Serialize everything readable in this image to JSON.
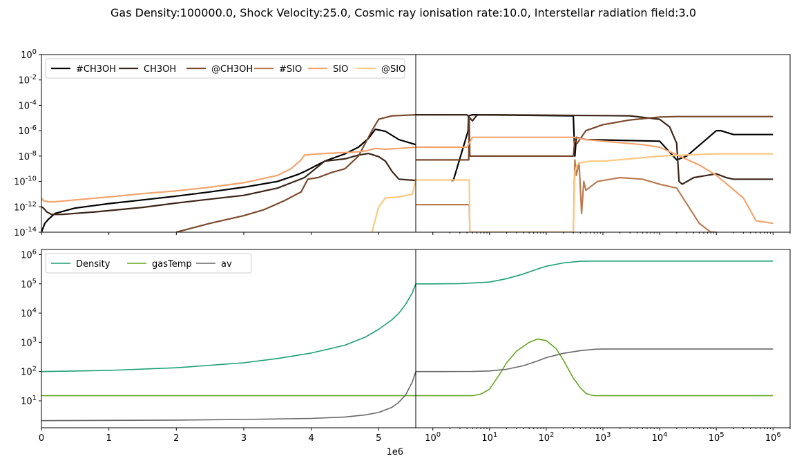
{
  "suptitle": "Gas Density:100000.0, Shock Velocity:25.0, Cosmic ray ionisation rate:10.0, Interstellar radiation field:3.0",
  "offset_label": "1e6",
  "colors": {
    "#CH3OH": "#000000",
    "CH3OH": "#3a2516",
    "@CH3OH": "#7a4a2c",
    "#SIO": "#bb7a4f",
    "SIO": "#f3a36c",
    "@SIO": "#fcc880",
    "Density": "#1b9e77",
    "gasTemp": "#66a61e",
    "av": "#666666"
  },
  "chart_data": [
    {
      "type": "line",
      "panel": "top-left",
      "xscale": "linear",
      "xlim": [
        0,
        5550000.0
      ],
      "yscale": "log",
      "ylim": [
        1e-14,
        1
      ],
      "yticklabels": [
        "10^-14",
        "10^-12",
        "10^-10",
        "10^-8",
        "10^-6",
        "10^-4",
        "10^-2",
        "10^0"
      ],
      "legend": "top-left",
      "series": [
        {
          "name": "#CH3OH",
          "x": [
            0,
            50000.0,
            100000.0,
            200000.0,
            500000.0,
            1000000.0,
            1500000.0,
            2000000.0,
            2500000.0,
            3000000.0,
            3500000.0,
            3800000.0,
            3900000.0,
            4200000.0,
            4500000.0,
            4700000.0,
            4850000.0,
            4950000.0,
            5100000.0,
            5300000.0,
            5550000.0
          ],
          "y": [
            1e-14,
            5e-14,
            1e-13,
            3e-13,
            8e-13,
            1.8e-12,
            3.5e-12,
            7e-12,
            1.5e-11,
            3.5e-11,
            1e-10,
            3.5e-10,
            6e-10,
            4e-09,
            1.5e-08,
            5e-08,
            2.5e-07,
            1.3e-06,
            9e-07,
            2e-07,
            8e-08
          ]
        },
        {
          "name": "CH3OH",
          "x": [
            0,
            30000.0,
            80000.0,
            150000.0,
            300000.0,
            800000.0,
            1500000.0,
            2000000.0,
            2500000.0,
            3000000.0,
            3500000.0,
            3900000.0,
            4200000.0,
            4500000.0,
            4700000.0,
            4850000.0,
            5000000.0,
            5100000.0,
            5200000.0,
            5300000.0,
            5550000.0
          ],
          "y": [
            1e-12,
            8e-13,
            4e-13,
            2.5e-13,
            2.5e-13,
            4e-13,
            9e-13,
            2e-12,
            4e-12,
            8e-12,
            3e-11,
            2e-10,
            4e-09,
            6e-09,
            1.2e-08,
            1.6e-08,
            9e-09,
            4e-09,
            6e-10,
            1.5e-10,
            1.2e-10
          ]
        },
        {
          "name": "@CH3OH",
          "x": [
            2000000.0,
            2500000.0,
            3000000.0,
            3300000.0,
            3600000.0,
            3850000.0,
            3950000.0,
            4100000.0,
            4300000.0,
            4500000.0,
            4700000.0,
            4800000.0,
            4900000.0,
            5000000.0,
            5200000.0,
            5550000.0
          ],
          "y": [
            1e-14,
            5e-14,
            2e-13,
            6e-13,
            3e-12,
            1.5e-11,
            1.5e-10,
            2e-10,
            5e-10,
            1e-09,
            1e-08,
            1e-07,
            1e-06,
            8e-06,
            1.5e-05,
            1.8e-05
          ]
        },
        {
          "name": "#SIO",
          "x": [],
          "y": []
        },
        {
          "name": "SIO",
          "x": [
            0,
            30000.0,
            100000.0,
            200000.0,
            500000.0,
            1000000.0,
            1500000.0,
            2000000.0,
            2500000.0,
            3000000.0,
            3500000.0,
            3700000.0,
            3850000.0,
            3900000.0,
            4100000.0,
            4300000.0,
            4600000.0,
            4800000.0,
            4950000.0,
            5100000.0,
            5300000.0,
            5550000.0
          ],
          "y": [
            5e-12,
            3e-12,
            2.5e-12,
            2.5e-12,
            3.5e-12,
            6e-12,
            1.1e-11,
            1.8e-11,
            3.5e-11,
            8e-11,
            3e-10,
            1e-09,
            5e-09,
            1.2e-08,
            1.5e-08,
            1.7e-08,
            2e-08,
            2.5e-08,
            4e-08,
            3.5e-08,
            4e-08,
            5e-08
          ]
        },
        {
          "name": "@SIO",
          "x": [
            4900000.0,
            5000000.0,
            5100000.0,
            5300000.0,
            5500000.0,
            5550000.0
          ],
          "y": [
            1e-14,
            1e-12,
            5e-12,
            6e-12,
            1e-11,
            1.3e-10
          ]
        }
      ]
    },
    {
      "type": "line",
      "panel": "top-right",
      "xscale": "log",
      "xlim": [
        0.5,
        2000000.0
      ],
      "yscale": "log",
      "ylim": [
        1e-14,
        1
      ],
      "series": [
        {
          "name": "#CH3OH",
          "x": [
            2.1,
            2.3,
            4.2,
            4.3,
            5,
            6,
            300,
            320,
            340,
            500,
            10000.0,
            20000.0,
            30000.0,
            100000.0,
            120000.0,
            200000.0,
            1000000.0
          ],
          "y": [
            1.2e-10,
            1.2e-10,
            1e-06,
            1.5e-05,
            1.8e-05,
            1.8e-05,
            1.5e-05,
            1e-08,
            3e-07,
            2e-07,
            1.5e-07,
            5e-09,
            1e-08,
            1e-06,
            1e-06,
            5e-07,
            5e-07
          ]
        },
        {
          "name": "CH3OH",
          "x": [
            0.5,
            2,
            4,
            5,
            6,
            7,
            10,
            3000.0,
            10000.0,
            15000.0,
            20000.0,
            22000.0,
            25000.0,
            40000.0,
            100000.0,
            150000.0,
            200000.0,
            1000000.0
          ],
          "y": [
            1.8e-05,
            1.8e-05,
            1.8e-05,
            6e-06,
            1.7e-05,
            1.8e-05,
            1.8e-05,
            1.5e-05,
            8e-06,
            2e-06,
            1e-07,
            1e-10,
            6e-11,
            2e-10,
            4e-10,
            2e-10,
            1.5e-10,
            1.5e-10
          ]
        },
        {
          "name": "@CH3OH",
          "x": [
            0.5,
            4.3,
            4.4,
            4.5,
            300,
            320,
            350,
            500,
            1000.0,
            3000.0,
            10000.0,
            20000.0,
            1000000.0
          ],
          "y": [
            5e-09,
            5e-09,
            1e-05,
            1e-08,
            1e-08,
            2e-07,
            1e-07,
            1e-06,
            3e-06,
            7e-06,
            1.2e-05,
            1.3e-05,
            1.3e-05
          ]
        },
        {
          "name": "#SIO",
          "x": [
            0.5,
            4,
            4.4,
            4.5,
            300,
            320,
            340,
            380,
            420,
            460,
            500,
            800,
            2000.0,
            5000.0,
            10000.0,
            20000.0,
            50000.0,
            80000.0,
            100000.0
          ],
          "y": [
            1.5e-12,
            1.5e-12,
            1.5e-12,
            1e-14,
            1e-14,
            5e-09,
            3e-10,
            3e-09,
            3e-13,
            1e-10,
            2e-11,
            1e-10,
            2e-10,
            1.5e-10,
            6e-11,
            3e-11,
            5e-14,
            1e-14,
            1e-14
          ]
        },
        {
          "name": "SIO",
          "x": [
            0.5,
            4,
            5,
            10,
            100,
            300,
            500,
            1000.0,
            5000.0,
            10000.0,
            50000.0,
            100000.0,
            300000.0,
            500000.0,
            1000000.0
          ],
          "y": [
            5e-08,
            5e-08,
            3e-07,
            3e-07,
            3e-07,
            3e-07,
            2e-07,
            1.5e-07,
            8e-08,
            5e-08,
            2e-09,
            3e-10,
            5e-12,
            8e-14,
            5e-14
          ]
        },
        {
          "name": "@SIO",
          "x": [
            0.5,
            4.3,
            4.4,
            4.5,
            300,
            320,
            350,
            400,
            600,
            1000.0,
            3000.0,
            10000.0,
            100000.0,
            1000000.0
          ],
          "y": [
            1.3e-10,
            1.3e-10,
            1e-10,
            1e-14,
            1e-14,
            6e-10,
            2e-09,
            3e-09,
            4e-09,
            4e-09,
            6e-09,
            1e-08,
            1.5e-08,
            1.5e-08
          ]
        }
      ]
    },
    {
      "type": "line",
      "panel": "bottom-left",
      "xscale": "linear",
      "xlim": [
        0,
        5550000.0
      ],
      "xticklabels": [
        "0",
        "1",
        "2",
        "3",
        "4",
        "5"
      ],
      "yscale": "log",
      "ylim": [
        1.2,
        1500000.0
      ],
      "yticklabels": [
        "10^1",
        "10^2",
        "10^3",
        "10^4",
        "10^5",
        "10^6"
      ],
      "legend": "top-left",
      "series": [
        {
          "name": "Density",
          "x": [
            0,
            1000000.0,
            2000000.0,
            3000000.0,
            3500000.0,
            4000000.0,
            4500000.0,
            4800000.0,
            5000000.0,
            5200000.0,
            5300000.0,
            5400000.0,
            5500000.0,
            5550000.0
          ],
          "y": [
            100,
            110,
            135,
            200,
            280,
            430,
            800,
            1500,
            2800,
            6000,
            10000.0,
            20000.0,
            50000.0,
            100000.0
          ]
        },
        {
          "name": "gasTemp",
          "x": [
            0,
            5550000.0
          ],
          "y": [
            15,
            15
          ]
        },
        {
          "name": "av",
          "x": [
            0,
            1000000.0,
            2000000.0,
            3000000.0,
            4000000.0,
            4500000.0,
            4800000.0,
            5000000.0,
            5200000.0,
            5300000.0,
            5400000.0,
            5500000.0,
            5550000.0
          ],
          "y": [
            2.1,
            2.15,
            2.2,
            2.3,
            2.5,
            2.8,
            3.3,
            4,
            6,
            9,
            16,
            45,
            100
          ]
        }
      ]
    },
    {
      "type": "line",
      "panel": "bottom-right",
      "xscale": "log",
      "xlim": [
        0.5,
        2000000.0
      ],
      "xticklabels": [
        "10^0",
        "10^1",
        "10^2",
        "10^3",
        "10^4",
        "10^5",
        "10^6"
      ],
      "yscale": "log",
      "ylim": [
        1.2,
        1500000.0
      ],
      "series": [
        {
          "name": "Density",
          "x": [
            0.5,
            1,
            3,
            10,
            20,
            40,
            70,
            100,
            200,
            400,
            700,
            1000.0,
            10000.0,
            1000000.0
          ],
          "y": [
            100000.0,
            100000.0,
            102000.0,
            115000.0,
            150000.0,
            220000.0,
            320000.0,
            400000.0,
            520000.0,
            590000.0,
            600000.0,
            600000.0,
            600000.0,
            600000.0
          ]
        },
        {
          "name": "gasTemp",
          "x": [
            0.5,
            5,
            7,
            10,
            15,
            20,
            30,
            50,
            70,
            100,
            150,
            200,
            300,
            400,
            500,
            600,
            700,
            1000.0,
            1000000.0
          ],
          "y": [
            15,
            15,
            17,
            25,
            80,
            200,
            500,
            1000,
            1300,
            1150,
            600,
            250,
            60,
            28,
            18,
            16,
            15,
            15,
            15
          ]
        },
        {
          "name": "av",
          "x": [
            0.5,
            1,
            5,
            10,
            20,
            40,
            70,
            100,
            200,
            400,
            700,
            1000.0,
            10000.0,
            1000000.0
          ],
          "y": [
            100,
            100,
            101,
            105,
            120,
            160,
            230,
            300,
            420,
            520,
            580,
            590,
            590,
            590
          ]
        }
      ]
    }
  ]
}
